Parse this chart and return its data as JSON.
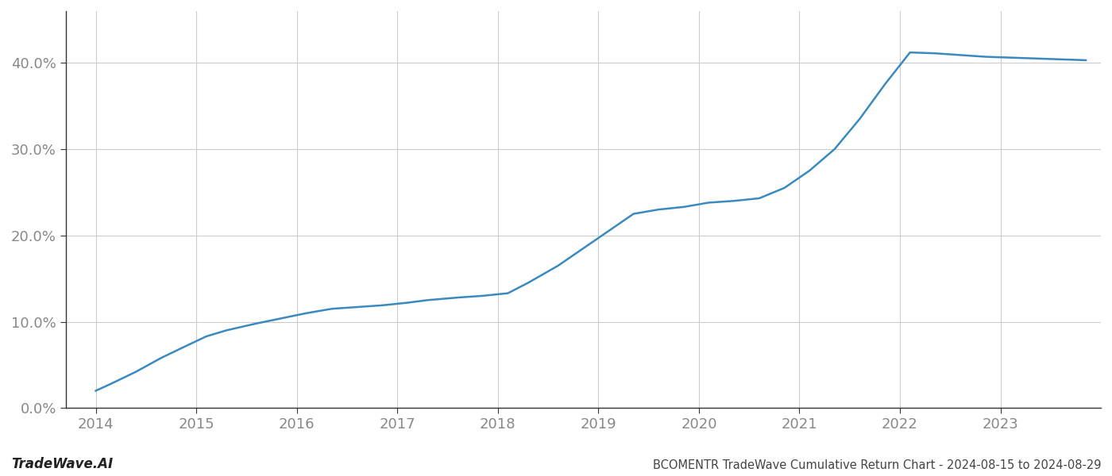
{
  "title": "BCOMENTR TradeWave Cumulative Return Chart - 2024-08-15 to 2024-08-29",
  "watermark": "TradeWave.AI",
  "line_color": "#3a8abf",
  "background_color": "#ffffff",
  "x_values": [
    2014.0,
    2014.15,
    2014.4,
    2014.65,
    2014.9,
    2015.1,
    2015.3,
    2015.6,
    2015.85,
    2016.1,
    2016.35,
    2016.6,
    2016.85,
    2017.1,
    2017.3,
    2017.6,
    2017.85,
    2018.1,
    2018.3,
    2018.6,
    2018.85,
    2019.1,
    2019.35,
    2019.6,
    2019.85,
    2020.1,
    2020.35,
    2020.6,
    2020.85,
    2021.1,
    2021.35,
    2021.6,
    2021.85,
    2022.1,
    2022.35,
    2022.6,
    2022.85,
    2023.1,
    2023.35,
    2023.6,
    2023.85
  ],
  "y_values": [
    2.0,
    2.8,
    4.2,
    5.8,
    7.2,
    8.3,
    9.0,
    9.8,
    10.4,
    11.0,
    11.5,
    11.7,
    11.9,
    12.2,
    12.5,
    12.8,
    13.0,
    13.3,
    14.5,
    16.5,
    18.5,
    20.5,
    22.5,
    23.0,
    23.3,
    23.8,
    24.0,
    24.3,
    25.5,
    27.5,
    30.0,
    33.5,
    37.5,
    41.2,
    41.1,
    40.9,
    40.7,
    40.6,
    40.5,
    40.4,
    40.3
  ],
  "x_ticks": [
    2014,
    2015,
    2016,
    2017,
    2018,
    2019,
    2020,
    2021,
    2022,
    2023
  ],
  "y_ticks": [
    0.0,
    10.0,
    20.0,
    30.0,
    40.0
  ],
  "y_labels": [
    "0.0%",
    "10.0%",
    "20.0%",
    "30.0%",
    "40.0%"
  ],
  "ylim": [
    0,
    46
  ],
  "xlim": [
    2013.7,
    2024.0
  ],
  "line_width": 1.8,
  "grid_color": "#cccccc",
  "grid_linewidth": 0.8,
  "spine_color": "#333333",
  "title_fontsize": 10.5,
  "tick_fontsize": 13,
  "watermark_fontsize": 12
}
